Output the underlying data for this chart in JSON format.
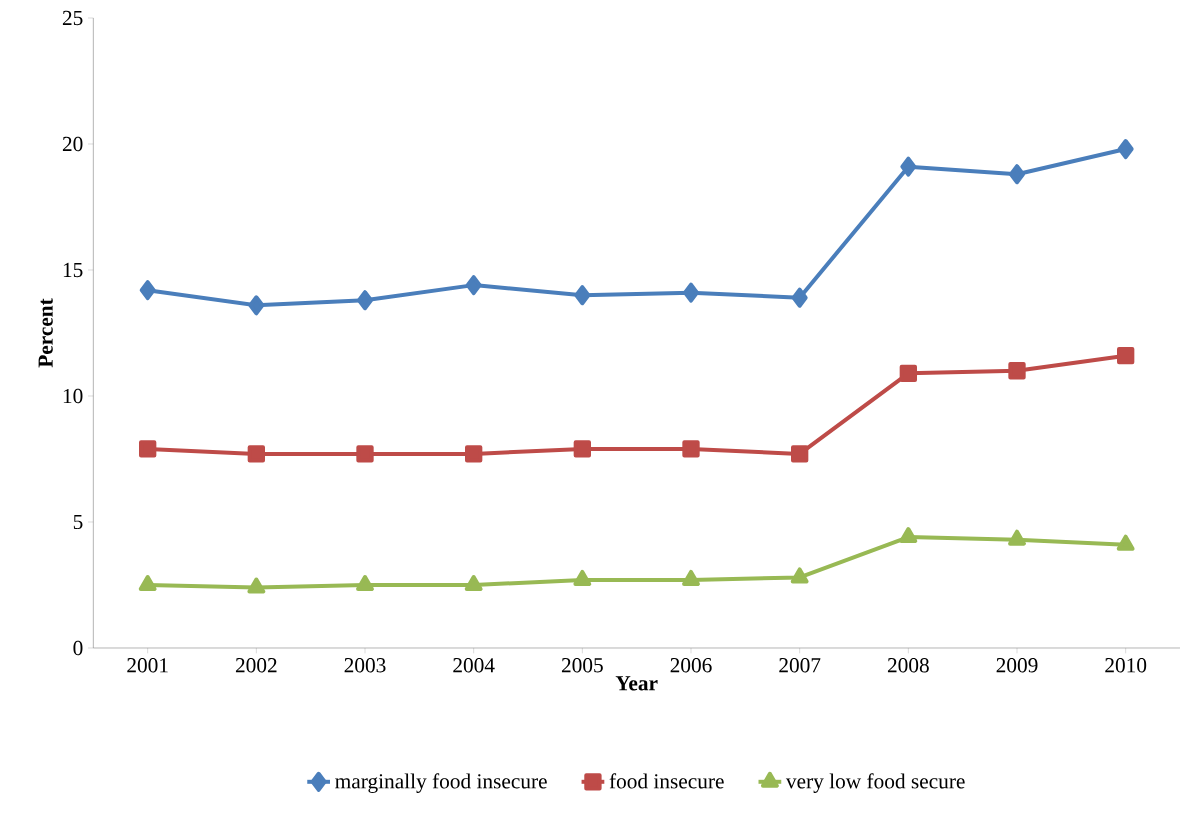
{
  "chart_data": {
    "type": "line",
    "xlabel": "Year",
    "ylabel": "Percent",
    "categories": [
      "2001",
      "2002",
      "2003",
      "2004",
      "2005",
      "2006",
      "2007",
      "2008",
      "2009",
      "2010"
    ],
    "series": [
      {
        "name": "marginally food insecure",
        "color": "#4a7ebb",
        "marker": "diamond",
        "values": [
          14.2,
          13.6,
          13.8,
          14.4,
          14.0,
          14.1,
          13.9,
          19.1,
          18.8,
          19.8
        ]
      },
      {
        "name": "food insecure",
        "color": "#be4b48",
        "marker": "square",
        "values": [
          7.9,
          7.7,
          7.7,
          7.7,
          7.9,
          7.9,
          7.7,
          10.9,
          11.0,
          11.6
        ]
      },
      {
        "name": "very low food secure",
        "color": "#98b954",
        "marker": "triangle",
        "values": [
          2.5,
          2.4,
          2.5,
          2.5,
          2.7,
          2.7,
          2.8,
          4.4,
          4.3,
          4.1
        ]
      }
    ],
    "ylim": [
      0,
      25
    ],
    "yticks": [
      0,
      5,
      10,
      15,
      20,
      25
    ],
    "legend": "bottom",
    "line_style": "solid"
  }
}
